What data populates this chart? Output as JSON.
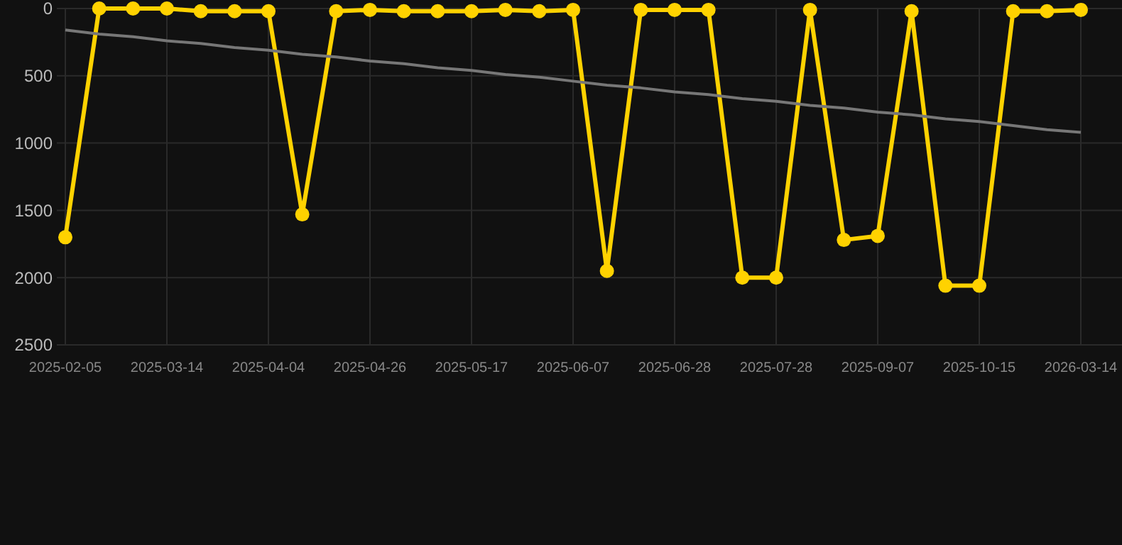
{
  "chart_data": {
    "type": "line",
    "categories": [
      "2025-02-05",
      null,
      null,
      "2025-03-14",
      null,
      null,
      "2025-04-04",
      null,
      null,
      "2025-04-26",
      null,
      null,
      "2025-05-17",
      null,
      null,
      "2025-06-07",
      null,
      null,
      "2025-06-28",
      null,
      null,
      "2025-07-28",
      null,
      null,
      "2025-09-07",
      null,
      null,
      "2025-10-15",
      null,
      null,
      "2026-03-14"
    ],
    "series": [
      {
        "color": "#ffd200",
        "values": [
          1700,
          0,
          0,
          0,
          20,
          20,
          20,
          1530,
          20,
          10,
          20,
          20,
          20,
          10,
          20,
          10,
          1950,
          10,
          10,
          10,
          2000,
          2000,
          10,
          1720,
          1690,
          20,
          2060,
          2060,
          20,
          20,
          10
        ]
      },
      {
        "type": "line",
        "color": "#777777",
        "marker": "none",
        "values": [
          160,
          190,
          210,
          240,
          260,
          290,
          310,
          340,
          360,
          390,
          410,
          440,
          460,
          490,
          510,
          540,
          570,
          590,
          620,
          640,
          670,
          690,
          720,
          740,
          770,
          790,
          820,
          840,
          870,
          900,
          920
        ]
      }
    ],
    "ylim": [
      2500,
      0
    ],
    "yticks": [
      0,
      500,
      1000,
      1500,
      2000,
      2500
    ],
    "grid": true,
    "marker": "circle",
    "line_style": "solid"
  }
}
